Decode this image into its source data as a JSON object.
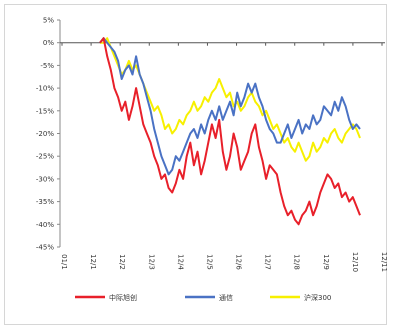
{
  "chart_data": {
    "type": "line",
    "title": "",
    "xlabel": "",
    "ylabel": "",
    "ylim": [
      -0.45,
      0.05
    ],
    "ytick_labels": [
      "5%",
      "0%",
      "-5%",
      "-10%",
      "-15%",
      "-20%",
      "-25%",
      "-30%",
      "-35%",
      "-40%",
      "-45%"
    ],
    "ytick_values": [
      0.05,
      0,
      -0.05,
      -0.1,
      -0.15,
      -0.2,
      -0.25,
      -0.3,
      -0.35,
      -0.4,
      -0.45
    ],
    "xtick_labels": [
      "01/1",
      "12/1",
      "12/2",
      "12/3",
      "12/4",
      "12/5",
      "12/6",
      "12/7",
      "12/8",
      "12/9",
      "12/10",
      "12/11"
    ],
    "legend_position": "bottom",
    "x": [
      0,
      1,
      2,
      3,
      4,
      5,
      6,
      7,
      8,
      9,
      10,
      11,
      12,
      13,
      14,
      15,
      16,
      17,
      18,
      19,
      20,
      21,
      22,
      23,
      24,
      25,
      26,
      27,
      28,
      29,
      30,
      31,
      32,
      33,
      34,
      35,
      36,
      37,
      38,
      39,
      40,
      41,
      42,
      43,
      44,
      45,
      46,
      47,
      48,
      49,
      50,
      51,
      52,
      53,
      54,
      55,
      56,
      57,
      58,
      59,
      60,
      61,
      62,
      63,
      64,
      65,
      66,
      67,
      68,
      69,
      70,
      71,
      72
    ],
    "series": [
      {
        "name": "中际旭创",
        "color": "#e8202a",
        "values": [
          0.0,
          0.01,
          -0.03,
          -0.06,
          -0.1,
          -0.12,
          -0.15,
          -0.13,
          -0.17,
          -0.14,
          -0.1,
          -0.14,
          -0.18,
          -0.2,
          -0.22,
          -0.25,
          -0.27,
          -0.3,
          -0.29,
          -0.32,
          -0.33,
          -0.31,
          -0.28,
          -0.3,
          -0.25,
          -0.22,
          -0.27,
          -0.24,
          -0.29,
          -0.26,
          -0.22,
          -0.18,
          -0.21,
          -0.17,
          -0.24,
          -0.28,
          -0.25,
          -0.2,
          -0.23,
          -0.28,
          -0.26,
          -0.24,
          -0.2,
          -0.18,
          -0.23,
          -0.26,
          -0.3,
          -0.27,
          -0.28,
          -0.29,
          -0.33,
          -0.36,
          -0.38,
          -0.37,
          -0.39,
          -0.4,
          -0.38,
          -0.37,
          -0.35,
          -0.38,
          -0.36,
          -0.33,
          -0.31,
          -0.29,
          -0.3,
          -0.32,
          -0.31,
          -0.34,
          -0.33,
          -0.35,
          -0.34,
          -0.36,
          -0.38
        ]
      },
      {
        "name": "通信",
        "color": "#4a72c4",
        "values": [
          0.0,
          0.01,
          0.0,
          -0.01,
          -0.02,
          -0.04,
          -0.08,
          -0.06,
          -0.05,
          -0.07,
          -0.03,
          -0.07,
          -0.09,
          -0.12,
          -0.15,
          -0.19,
          -0.22,
          -0.25,
          -0.27,
          -0.29,
          -0.28,
          -0.25,
          -0.26,
          -0.24,
          -0.22,
          -0.2,
          -0.19,
          -0.21,
          -0.18,
          -0.2,
          -0.17,
          -0.15,
          -0.17,
          -0.14,
          -0.17,
          -0.15,
          -0.13,
          -0.16,
          -0.11,
          -0.14,
          -0.12,
          -0.09,
          -0.11,
          -0.09,
          -0.12,
          -0.14,
          -0.17,
          -0.19,
          -0.2,
          -0.22,
          -0.22,
          -0.2,
          -0.18,
          -0.21,
          -0.19,
          -0.17,
          -0.2,
          -0.18,
          -0.19,
          -0.16,
          -0.18,
          -0.17,
          -0.14,
          -0.15,
          -0.16,
          -0.13,
          -0.15,
          -0.12,
          -0.14,
          -0.17,
          -0.19,
          -0.18,
          -0.19
        ]
      },
      {
        "name": "沪深300",
        "color": "#f7f000",
        "values": [
          0.0,
          0.0,
          0.01,
          -0.01,
          -0.03,
          -0.05,
          -0.07,
          -0.06,
          -0.04,
          -0.06,
          -0.05,
          -0.07,
          -0.09,
          -0.11,
          -0.13,
          -0.15,
          -0.14,
          -0.16,
          -0.19,
          -0.18,
          -0.2,
          -0.19,
          -0.17,
          -0.18,
          -0.16,
          -0.15,
          -0.13,
          -0.15,
          -0.14,
          -0.12,
          -0.13,
          -0.11,
          -0.1,
          -0.08,
          -0.1,
          -0.12,
          -0.11,
          -0.14,
          -0.13,
          -0.15,
          -0.14,
          -0.12,
          -0.11,
          -0.13,
          -0.14,
          -0.16,
          -0.15,
          -0.17,
          -0.19,
          -0.18,
          -0.2,
          -0.22,
          -0.21,
          -0.23,
          -0.24,
          -0.22,
          -0.24,
          -0.26,
          -0.25,
          -0.22,
          -0.24,
          -0.23,
          -0.21,
          -0.22,
          -0.2,
          -0.19,
          -0.21,
          -0.22,
          -0.2,
          -0.19,
          -0.18,
          -0.19,
          -0.21
        ]
      }
    ]
  }
}
